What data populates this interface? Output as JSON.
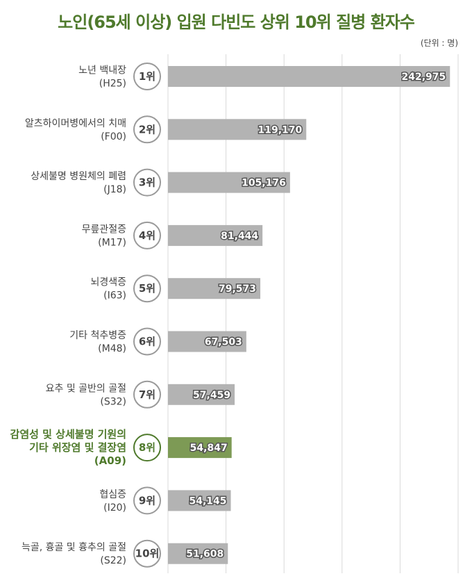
{
  "title": "노인(65세 이상) 입원 다빈도 상위 10위 질병 환자수",
  "unit_note": "(단위 : 명)",
  "colors": {
    "accent": "#4f7a2c",
    "bar": "#b3b3b3",
    "bar_highlight": "#7d9a55",
    "grid": "#d9d9d9"
  },
  "chart_data": {
    "type": "bar",
    "orientation": "horizontal",
    "xlim": [
      0,
      250000
    ],
    "grid": true,
    "highlight_index": 7,
    "categories": [
      {
        "rank": "1위",
        "name": [
          "노년 백내장"
        ],
        "code": "(H25)"
      },
      {
        "rank": "2위",
        "name": [
          "알츠하이머병에서의 치매"
        ],
        "code": "(F00)"
      },
      {
        "rank": "3위",
        "name": [
          "상세불명 병원체의 폐렴"
        ],
        "code": "(J18)"
      },
      {
        "rank": "4위",
        "name": [
          "무릎관절증"
        ],
        "code": "(M17)"
      },
      {
        "rank": "5위",
        "name": [
          "뇌경색증"
        ],
        "code": "(I63)"
      },
      {
        "rank": "6위",
        "name": [
          "기타 척추병증"
        ],
        "code": "(M48)"
      },
      {
        "rank": "7위",
        "name": [
          "요추 및 골반의 골절"
        ],
        "code": "(S32)"
      },
      {
        "rank": "8위",
        "name": [
          "감염성 및 상세불명 기원의",
          "기타 위장염 및 결장염"
        ],
        "code": "(A09)"
      },
      {
        "rank": "9위",
        "name": [
          "협심증"
        ],
        "code": "(I20)"
      },
      {
        "rank": "10위",
        "name": [
          "늑골, 흉골 및 흉추의 골절"
        ],
        "code": "(S22)"
      }
    ],
    "values": [
      242975,
      119170,
      105176,
      81444,
      79573,
      67503,
      57459,
      54847,
      54145,
      51608
    ],
    "value_labels": [
      "242,975",
      "119,170",
      "105,176",
      "81,444",
      "79,573",
      "67,503",
      "57,459",
      "54,847",
      "54,145",
      "51,608"
    ]
  }
}
